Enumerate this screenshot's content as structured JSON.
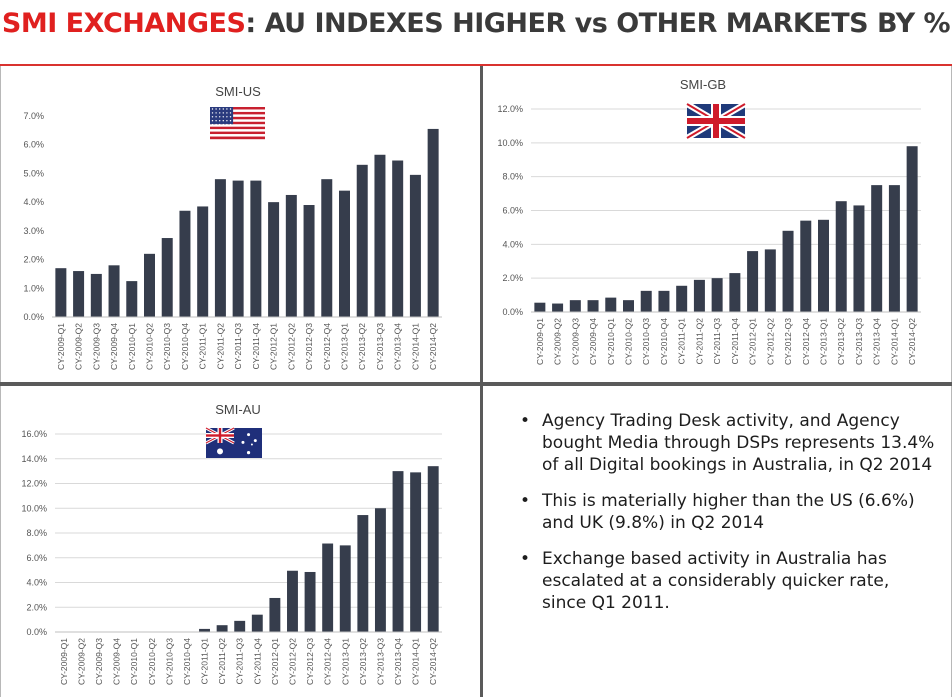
{
  "header": {
    "title_accent": "SMI EXCHANGES",
    "title_rest": ": AU INDEXES HIGHER vs OTHER MARKETS BY %",
    "accent_color": "#e0201f",
    "text_color": "#3a3a3a"
  },
  "colors": {
    "bar": "#363d4c",
    "gridline": "#d9d9d9",
    "separator": "#5a5a5a"
  },
  "flags": {
    "us": "us-flag-icon",
    "gb": "gb-flag-icon",
    "au": "au-flag-icon"
  },
  "chart_data": [
    {
      "id": "us",
      "type": "bar",
      "title": "SMI-US",
      "categories": [
        "CY-2009-Q1",
        "CY-2009-Q2",
        "CY-2009-Q3",
        "CY-2009-Q4",
        "CY-2010-Q1",
        "CY-2010-Q2",
        "CY-2010-Q3",
        "CY-2010-Q4",
        "CY-2011-Q1",
        "CY-2011-Q2",
        "CY-2011-Q3",
        "CY-2011-Q4",
        "CY-2012-Q1",
        "CY-2012-Q2",
        "CY-2012-Q3",
        "CY-2012-Q4",
        "CY-2013-Q1",
        "CY-2013-Q2",
        "CY-2013-Q3",
        "CY-2013-Q4",
        "CY-2014-Q1",
        "CY-2014-Q2"
      ],
      "values": [
        1.7,
        1.6,
        1.5,
        1.8,
        1.25,
        2.2,
        2.75,
        3.7,
        3.85,
        4.8,
        4.75,
        4.75,
        4.0,
        4.25,
        3.9,
        4.8,
        4.4,
        5.3,
        5.65,
        5.45,
        4.95,
        6.55
      ],
      "ylim": [
        0,
        7
      ],
      "yticks": [
        "0.0%",
        "1.0%",
        "2.0%",
        "3.0%",
        "4.0%",
        "5.0%",
        "6.0%",
        "7.0%"
      ],
      "grid": false
    },
    {
      "id": "gb",
      "type": "bar",
      "title": "SMI-GB",
      "categories": [
        "CY-2009-Q1",
        "CY-2009-Q2",
        "CY-2009-Q3",
        "CY-2009-Q4",
        "CY-2010-Q1",
        "CY-2010-Q2",
        "CY-2010-Q3",
        "CY-2010-Q4",
        "CY-2011-Q1",
        "CY-2011-Q2",
        "CY-2011-Q3",
        "CY-2011-Q4",
        "CY-2012-Q1",
        "CY-2012-Q2",
        "CY-2012-Q3",
        "CY-2012-Q4",
        "CY-2013-Q1",
        "CY-2013-Q2",
        "CY-2013-Q3",
        "CY-2013-Q4",
        "CY-2014-Q1",
        "CY-2014-Q2"
      ],
      "values": [
        0.55,
        0.5,
        0.7,
        0.7,
        0.85,
        0.7,
        1.25,
        1.25,
        1.55,
        1.9,
        2.0,
        2.3,
        3.6,
        3.7,
        4.8,
        5.4,
        5.45,
        6.55,
        6.3,
        7.5,
        7.5,
        9.8
      ],
      "ylim": [
        0,
        12
      ],
      "yticks": [
        "0.0%",
        "2.0%",
        "4.0%",
        "6.0%",
        "8.0%",
        "10.0%",
        "12.0%"
      ],
      "grid": true
    },
    {
      "id": "au",
      "type": "bar",
      "title": "SMI-AU",
      "categories": [
        "CY-2009-Q1",
        "CY-2009-Q2",
        "CY-2009-Q3",
        "CY-2009-Q4",
        "CY-2010-Q1",
        "CY-2010-Q2",
        "CY-2010-Q3",
        "CY-2010-Q4",
        "CY-2011-Q1",
        "CY-2011-Q2",
        "CY-2011-Q3",
        "CY-2011-Q4",
        "CY-2012-Q1",
        "CY-2012-Q2",
        "CY-2012-Q3",
        "CY-2012-Q4",
        "CY-2013-Q1",
        "CY-2013-Q2",
        "CY-2013-Q3",
        "CY-2013-Q4",
        "CY-2014-Q1",
        "CY-2014-Q2"
      ],
      "values": [
        0,
        0,
        0,
        0,
        0,
        0,
        0,
        0,
        0.25,
        0.55,
        0.9,
        1.4,
        2.75,
        4.95,
        4.85,
        7.15,
        7.0,
        9.45,
        10.0,
        13.0,
        12.9,
        13.4
      ],
      "ylim": [
        0,
        16
      ],
      "yticks": [
        "0.0%",
        "2.0%",
        "4.0%",
        "6.0%",
        "8.0%",
        "10.0%",
        "12.0%",
        "14.0%",
        "16.0%"
      ],
      "grid": true
    }
  ],
  "bullets": [
    "Agency Trading Desk activity, and Agency bought Media through DSPs represents 13.4% of all Digital bookings in Australia, in Q2 2014",
    "This is materially higher than the US (6.6%) and UK (9.8%) in Q2 2014",
    "Exchange based activity in Australia has escalated at a considerably quicker rate, since Q1 2011."
  ]
}
